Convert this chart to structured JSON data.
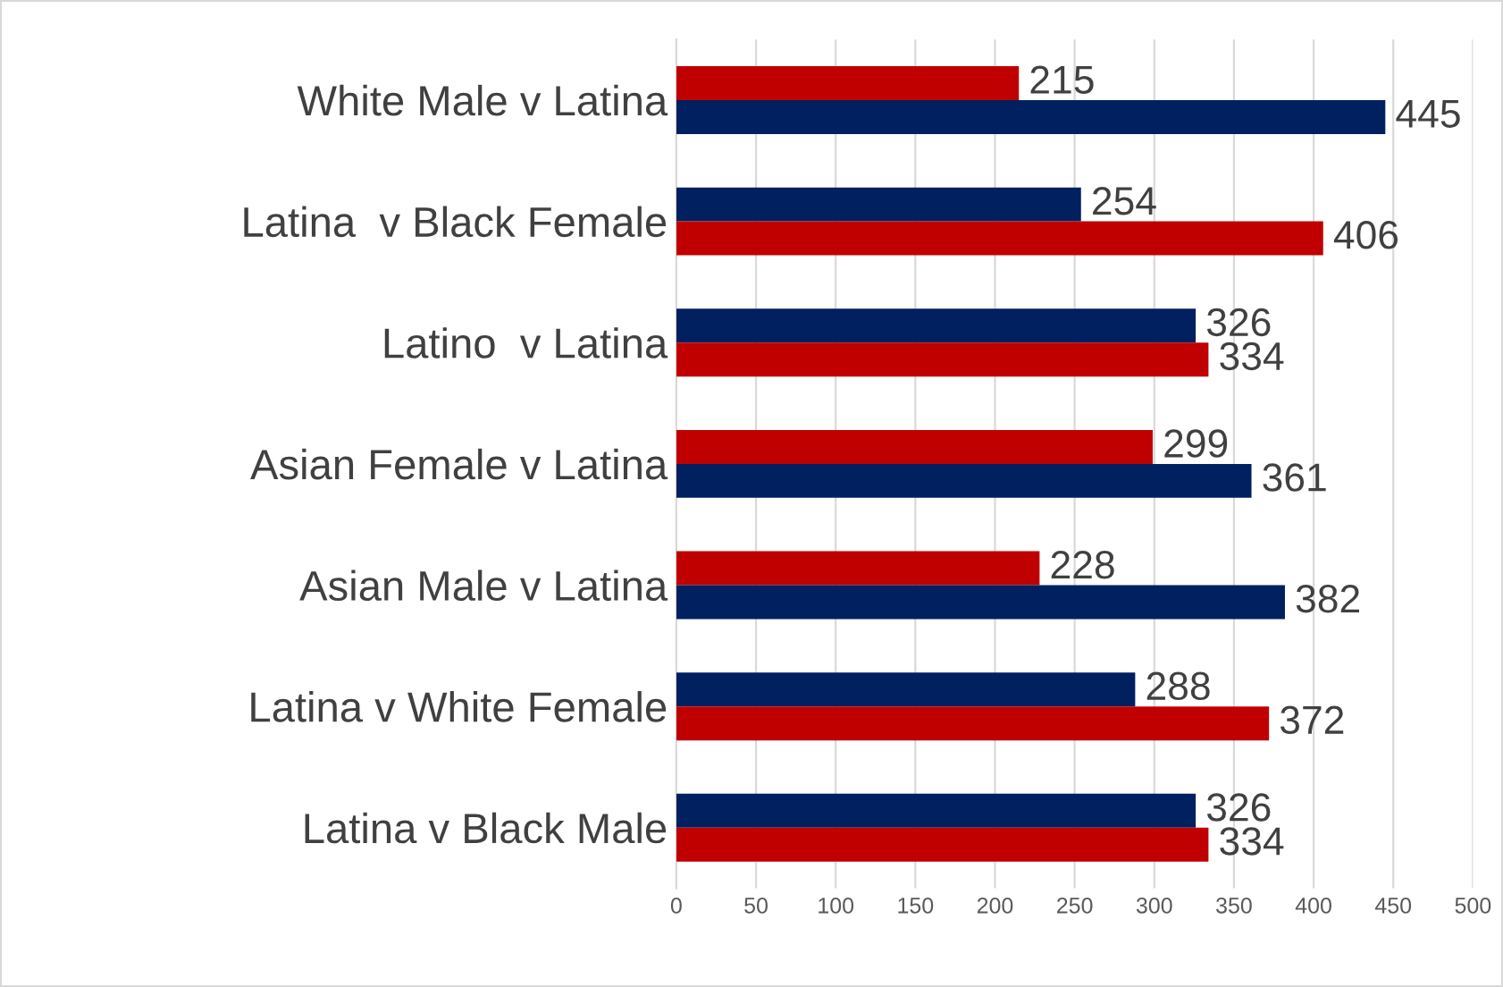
{
  "chart_data": {
    "type": "bar",
    "orientation": "horizontal",
    "categories": [
      "White Male v Latina",
      "Latina  v Black Female",
      "Latino  v Latina",
      "Asian Female v Latina",
      "Asian Male v Latina",
      "Latina v White Female",
      "Latina v Black Male"
    ],
    "series": [
      {
        "colors": [
          "#c00000",
          "#002060",
          "#002060",
          "#c00000",
          "#c00000",
          "#002060",
          "#002060"
        ],
        "values": [
          215,
          254,
          326,
          299,
          228,
          288,
          326
        ]
      },
      {
        "colors": [
          "#002060",
          "#c00000",
          "#c00000",
          "#002060",
          "#002060",
          "#c00000",
          "#c00000"
        ],
        "values": [
          445,
          406,
          334,
          361,
          382,
          372,
          334
        ]
      }
    ],
    "xlim": [
      0,
      500
    ],
    "xticks": [
      0,
      50,
      100,
      150,
      200,
      250,
      300,
      350,
      400,
      450,
      500
    ],
    "grid": "x",
    "data_labels": true,
    "legend": false
  }
}
